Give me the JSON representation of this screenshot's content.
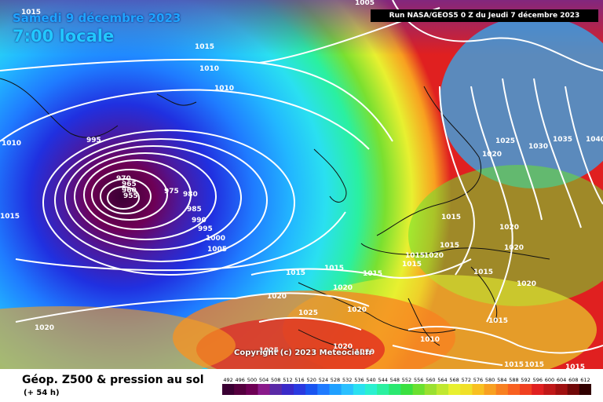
{
  "header": {
    "date": "Samedi 9 décembre 2023",
    "time": "7:00 locale",
    "run": "Run NASA/GEOS5 0 Z du Jeudi 7 décembre 2023"
  },
  "copyright": "Copyright (c) 2023 Meteociel.fr",
  "legend": {
    "title": "Géop. Z500 & pression au sol",
    "subtitle": "(+ 54 h)",
    "scale_values": [
      "492",
      "496",
      "500",
      "504",
      "508",
      "512",
      "516",
      "520",
      "524",
      "528",
      "532",
      "536",
      "540",
      "544",
      "548",
      "552",
      "556",
      "560",
      "564",
      "568",
      "572",
      "576",
      "580",
      "584",
      "588",
      "592",
      "596",
      "600",
      "604",
      "608",
      "612"
    ],
    "scale_colors": [
      "#3a0033",
      "#55003f",
      "#6e0055",
      "#8a1a8a",
      "#5a2aa6",
      "#3a2ac8",
      "#2a3ae0",
      "#1a55f0",
      "#1f7bff",
      "#1fa0ff",
      "#2ac0ff",
      "#2ae0f0",
      "#2af0d0",
      "#2af0a0",
      "#2ae870",
      "#3ae040",
      "#6ae030",
      "#9ae030",
      "#c0e830",
      "#e8f030",
      "#f0e028",
      "#f8c020",
      "#f8a020",
      "#f88020",
      "#f86020",
      "#f04020",
      "#e02020",
      "#c01818",
      "#a01010",
      "#700808",
      "#300000"
    ]
  },
  "isobars": [
    "1015",
    "1005",
    "1015",
    "1010",
    "1010",
    "995",
    "970",
    "965",
    "960",
    "955",
    "975",
    "980",
    "985",
    "990",
    "995",
    "1000",
    "1005",
    "1010",
    "1015",
    "1015",
    "1015",
    "1020",
    "1025",
    "1020",
    "1025",
    "1020",
    "1020",
    "1020",
    "1015",
    "1015",
    "1015",
    "1020",
    "1020",
    "1015",
    "1015",
    "1010",
    "1015",
    "1015",
    "1015",
    "1020",
    "1030",
    "1035",
    "1040",
    "1025",
    "1020",
    "1015",
    "1020",
    "1020",
    "1015"
  ],
  "colors": {
    "low_center": "#6b0f4a",
    "contour": "#ffffff",
    "coast": "#111111"
  }
}
